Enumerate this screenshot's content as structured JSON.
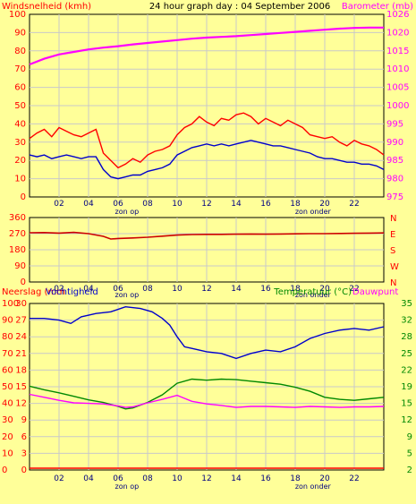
{
  "chart_data": [
    {
      "type": "line",
      "title": "24 hour graph day : 04 September 2006",
      "ylabel_left": "Windsnelheid (kmh)",
      "ylabel_right": "Barometer (mb)",
      "x_ticks": [
        "02",
        "04",
        "06",
        "08",
        "10",
        "12",
        "14",
        "16",
        "18",
        "20",
        "22"
      ],
      "x_annotations": [
        "zon op",
        "zon onder"
      ],
      "y_left_ticks": [
        "0",
        "10",
        "20",
        "30",
        "40",
        "50",
        "60",
        "70",
        "80",
        "90",
        "100"
      ],
      "y_right_ticks": [
        "975",
        "980",
        "985",
        "990",
        "995",
        "1000",
        "1005",
        "1010",
        "1015",
        "1020",
        "1026"
      ],
      "ylim_left": [
        0,
        100
      ],
      "series": [
        {
          "name": "Barometer (mb)",
          "axis": "right",
          "color": "#ff00ff",
          "x": [
            0,
            1,
            2,
            3,
            4,
            5,
            6,
            7,
            8,
            9,
            10,
            11,
            12,
            13,
            14,
            15,
            16,
            17,
            18,
            19,
            20,
            21,
            22,
            23,
            24
          ],
          "values": [
            1012.0,
            1013.6,
            1014.8,
            1015.5,
            1016.2,
            1016.7,
            1017.1,
            1017.6,
            1018.0,
            1018.4,
            1018.8,
            1019.2,
            1019.5,
            1019.7,
            1019.9,
            1020.2,
            1020.5,
            1020.8,
            1021.1,
            1021.4,
            1021.7,
            1022.0,
            1022.2,
            1022.3,
            1022.3
          ]
        },
        {
          "color": "#ff0000",
          "x": [
            0,
            0.5,
            1,
            1.5,
            2,
            2.5,
            3,
            3.5,
            4,
            4.5,
            5,
            5.5,
            6,
            6.5,
            7,
            7.5,
            8,
            8.5,
            9,
            9.5,
            10,
            10.5,
            11,
            11.5,
            12,
            12.5,
            13,
            13.5,
            14,
            14.5,
            15,
            15.5,
            16,
            16.5,
            17,
            17.5,
            18,
            18.5,
            19,
            19.5,
            20,
            20.5,
            21,
            21.5,
            22,
            22.5,
            23,
            23.5,
            24
          ],
          "values": [
            32,
            35,
            37,
            33,
            38,
            36,
            34,
            33,
            35,
            37,
            24,
            20,
            16,
            18,
            21,
            19,
            23,
            25,
            26,
            28,
            34,
            38,
            40,
            44,
            41,
            39,
            43,
            42,
            45,
            46,
            44,
            40,
            43,
            41,
            39,
            42,
            40,
            38,
            34,
            33,
            32,
            33,
            30,
            28,
            31,
            29,
            28,
            26,
            23
          ]
        },
        {
          "color": "#0000cc",
          "x": [
            0,
            0.5,
            1,
            1.5,
            2,
            2.5,
            3,
            3.5,
            4,
            4.5,
            5,
            5.5,
            6,
            6.5,
            7,
            7.5,
            8,
            8.5,
            9,
            9.5,
            10,
            10.5,
            11,
            11.5,
            12,
            12.5,
            13,
            13.5,
            14,
            14.5,
            15,
            15.5,
            16,
            16.5,
            17,
            17.5,
            18,
            18.5,
            19,
            19.5,
            20,
            20.5,
            21,
            21.5,
            22,
            22.5,
            23,
            23.5,
            24
          ],
          "values": [
            23,
            22,
            23,
            21,
            22,
            23,
            22,
            21,
            22,
            22,
            15,
            11,
            10,
            11,
            12,
            12,
            14,
            15,
            16,
            18,
            23,
            25,
            27,
            28,
            29,
            28,
            29,
            28,
            29,
            30,
            31,
            30,
            29,
            28,
            28,
            27,
            26,
            25,
            24,
            22,
            21,
            21,
            20,
            19,
            19,
            18,
            18,
            17,
            15
          ]
        }
      ]
    },
    {
      "type": "line",
      "y_ticks": [
        "0",
        "90",
        "180",
        "270",
        "360"
      ],
      "y_right_ticks": [
        "N",
        "W",
        "S",
        "E",
        "N"
      ],
      "x_ticks": [
        "02",
        "04",
        "06",
        "08",
        "10",
        "12",
        "14",
        "16",
        "18",
        "20",
        "22"
      ],
      "x_annotations": [
        "zon op",
        "zon onder"
      ],
      "ylim": [
        0,
        360
      ],
      "series": [
        {
          "color": "#cc0000",
          "x": [
            0,
            1,
            2,
            3,
            4,
            5,
            5.5,
            6,
            7,
            8,
            9,
            10,
            11,
            12,
            13,
            14,
            15,
            16,
            17,
            18,
            19,
            20,
            21,
            22,
            23,
            24
          ],
          "values": [
            275,
            276,
            273,
            277,
            270,
            255,
            240,
            243,
            246,
            250,
            256,
            262,
            265,
            266,
            266,
            267,
            268,
            267,
            268,
            269,
            270,
            270,
            271,
            272,
            273,
            274
          ]
        }
      ]
    },
    {
      "type": "line",
      "ylabel_left": "Neerslag (mm Vochtigheid",
      "ylabel_right": "Temperatuur (°C) Dauwpunt",
      "y_left_ticks": [
        "0",
        "3",
        "6",
        "9",
        "12",
        "15",
        "18",
        "21",
        "24",
        "27",
        "30"
      ],
      "y_left_ticks_outer": [
        "0",
        "10",
        "20",
        "30",
        "40",
        "50",
        "60",
        "70",
        "80",
        "90",
        "100"
      ],
      "y_right_ticks": [
        "2",
        "5",
        "9",
        "12",
        "15",
        "19",
        "22",
        "25",
        "28",
        "32",
        "35"
      ],
      "x_ticks": [
        "02",
        "04",
        "06",
        "08",
        "10",
        "12",
        "14",
        "16",
        "18",
        "20",
        "22"
      ],
      "x_annotations": [
        "zon op",
        "zon onder"
      ],
      "series": [
        {
          "name": "Vochtigheid",
          "color": "#0000cc",
          "x": [
            0,
            1,
            2,
            2.8,
            3.5,
            4.5,
            5.5,
            6.5,
            7.5,
            8.3,
            9,
            9.5,
            10,
            10.5,
            11,
            12,
            13,
            14,
            15,
            16,
            17,
            18,
            19,
            20,
            21,
            22,
            23,
            24
          ],
          "values": [
            91,
            91,
            90,
            88,
            92,
            94,
            95,
            98,
            97,
            95,
            91,
            87,
            80,
            74,
            73,
            71,
            70,
            67,
            70,
            72,
            71,
            74,
            79,
            82,
            84,
            85,
            84,
            86
          ]
        },
        {
          "name": "Temperatuur (°C)",
          "color": "#008800",
          "x": [
            0,
            1,
            2,
            3,
            4,
            5,
            6,
            6.5,
            7,
            8,
            9,
            10,
            11,
            12,
            13,
            14,
            15,
            16,
            17,
            18,
            19,
            20,
            21,
            22,
            23,
            24
          ],
          "values": [
            18.6,
            17.9,
            17.3,
            16.6,
            15.9,
            15.4,
            14.6,
            14.1,
            14.3,
            15.4,
            16.9,
            19.2,
            20.0,
            19.8,
            20.0,
            19.9,
            19.6,
            19.3,
            19.0,
            18.4,
            17.6,
            16.4,
            16.0,
            15.8,
            16.1,
            16.4
          ]
        },
        {
          "name": "Dauwpunt",
          "color": "#ff00ff",
          "x": [
            0,
            1,
            2,
            3,
            4,
            5,
            6,
            6.5,
            7,
            8,
            9,
            10,
            10.5,
            11,
            12,
            13,
            14,
            15,
            16,
            17,
            18,
            19,
            20,
            21,
            22,
            23,
            24
          ],
          "values": [
            17.0,
            16.4,
            15.8,
            15.3,
            15.2,
            15.1,
            14.7,
            14.4,
            14.5,
            15.3,
            16.0,
            16.8,
            16.2,
            15.6,
            15.1,
            14.8,
            14.4,
            14.6,
            14.6,
            14.5,
            14.4,
            14.6,
            14.5,
            14.4,
            14.5,
            14.5,
            14.6
          ]
        },
        {
          "name": "Neerslag",
          "color": "#ff0000",
          "x": [
            0,
            24
          ],
          "values": [
            0,
            0
          ]
        }
      ]
    }
  ]
}
